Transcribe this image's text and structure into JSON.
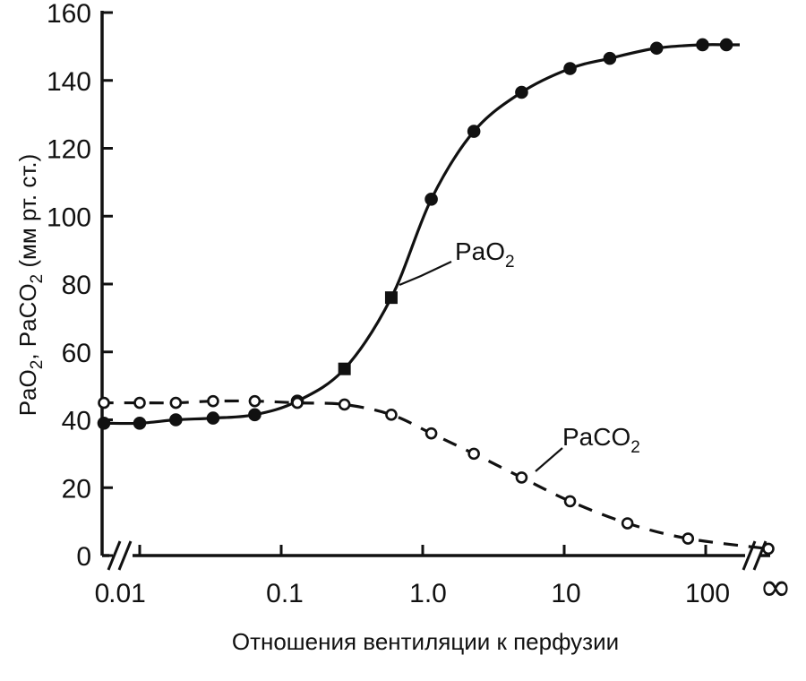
{
  "chart_data": {
    "type": "line",
    "title": "",
    "ylabel": {
      "parts": [
        "Pa",
        "O",
        "2",
        ", Pa",
        "CO",
        "2",
        " (мм рт. ст.)"
      ]
    },
    "xlabel": "Отношения вентиляции к перфузии",
    "xscale": "log (с разрывами оси: 0 и ∞)",
    "ylim": [
      0,
      160
    ],
    "yticks": [
      "0",
      "20",
      "40",
      "60",
      "80",
      "100",
      "120",
      "140",
      "160"
    ],
    "xticks": [
      "0",
      ".01",
      "0.1",
      "1.0",
      "10",
      "100",
      "∞"
    ],
    "grid": false,
    "series": [
      {
        "name_parts": [
          "PaO",
          "2"
        ],
        "style": "solid, filled markers",
        "x": [
          0,
          0.01,
          0.018,
          0.033,
          0.065,
          0.13,
          0.28,
          0.6,
          1.15,
          2.3,
          5,
          11,
          21,
          45,
          95,
          140
        ],
        "y": [
          39,
          39,
          40,
          40.5,
          41.5,
          45.5,
          55,
          76,
          105,
          125,
          136.5,
          143.5,
          146.5,
          149.5,
          150.5,
          150.5
        ]
      },
      {
        "name_parts": [
          "PaCO",
          "2"
        ],
        "style": "dashed, open markers",
        "x": [
          0,
          0.01,
          0.018,
          0.033,
          0.065,
          0.13,
          0.28,
          0.6,
          1.15,
          2.3,
          5,
          11,
          28,
          75,
          "∞"
        ],
        "y": [
          45,
          45,
          45,
          45.5,
          45.5,
          45,
          44.5,
          41.5,
          36,
          30,
          23,
          16,
          9.5,
          5,
          2
        ]
      }
    ]
  }
}
